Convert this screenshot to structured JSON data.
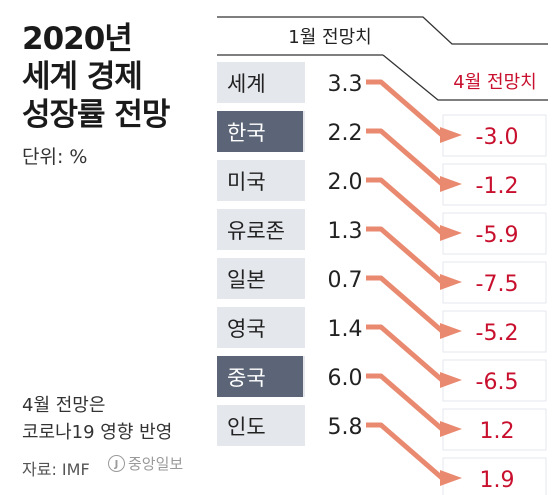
{
  "title": "2020년\n세계 경제\n성장률 전망",
  "unit_label": "단위: %",
  "note": "4월 전망은\n코로나19 영향 반영",
  "source": "자료: IMF",
  "logo_text": "중앙일보",
  "colors": {
    "arrow": "#e98a70",
    "negative_value": "#c8102e",
    "positive_value": "#c8102e",
    "row_bg": "#e4e7ec",
    "row_bg_highlight": "#5b6577",
    "header_line": "#333333"
  },
  "chart_data": {
    "type": "table",
    "title": "2020년 세계 경제 성장률 전망",
    "unit": "%",
    "column_headers": [
      "1월 전망치",
      "4월 전망치"
    ],
    "rows": [
      {
        "name": "세계",
        "jan": "3.3",
        "apr": "-3.0",
        "highlight": false
      },
      {
        "name": "한국",
        "jan": "2.2",
        "apr": "-1.2",
        "highlight": true
      },
      {
        "name": "미국",
        "jan": "2.0",
        "apr": "-5.9",
        "highlight": false
      },
      {
        "name": "유로존",
        "jan": "1.3",
        "apr": "-7.5",
        "highlight": false
      },
      {
        "name": "일본",
        "jan": "0.7",
        "apr": "-5.2",
        "highlight": false
      },
      {
        "name": "영국",
        "jan": "1.4",
        "apr": "-6.5",
        "highlight": false
      },
      {
        "name": "중국",
        "jan": "6.0",
        "apr": "1.2",
        "highlight": true
      },
      {
        "name": "인도",
        "jan": "5.8",
        "apr": "1.9",
        "highlight": false
      }
    ]
  }
}
